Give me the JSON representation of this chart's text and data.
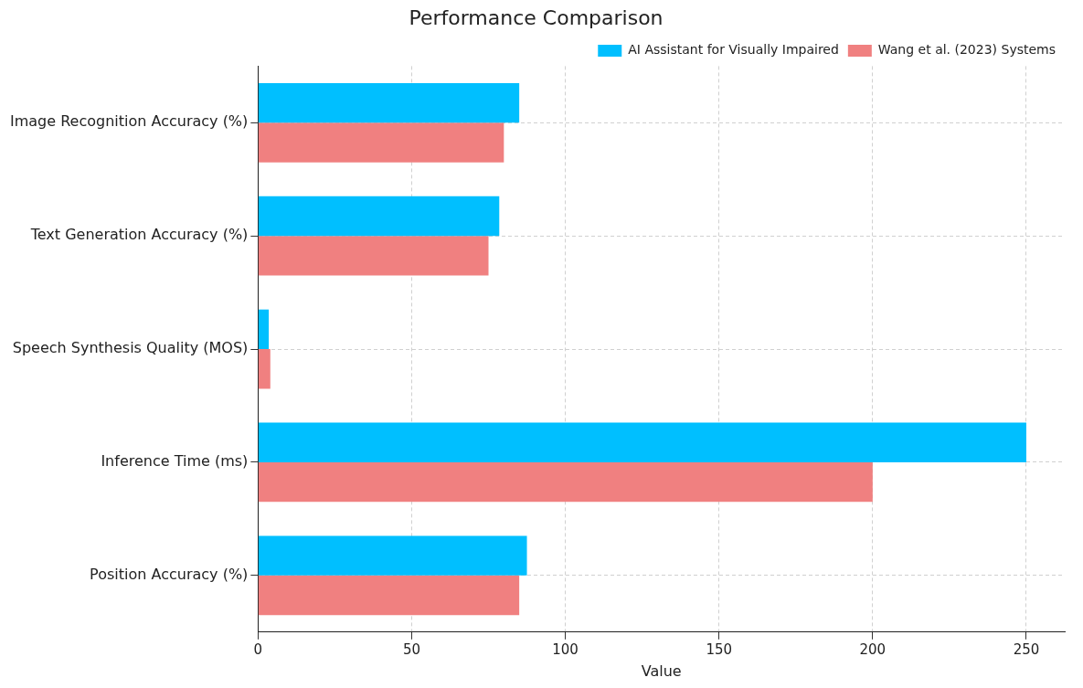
{
  "chart_data": {
    "type": "bar",
    "orientation": "horizontal",
    "title": "Performance Comparison",
    "xlabel": "Value",
    "categories": [
      "Image Recognition Accuracy (%)",
      "Text Generation Accuracy (%)",
      "Speech Synthesis Quality (MOS)",
      "Inference Time (ms)",
      "Position Accuracy (%)"
    ],
    "series": [
      {
        "name": "AI Assistant for Visually Impaired",
        "color": "#00bfff",
        "values": [
          85,
          78.5,
          3.5,
          250,
          87.5
        ]
      },
      {
        "name": "Wang et al. (2023) Systems",
        "color": "#f08080",
        "values": [
          80,
          75,
          4,
          200,
          85
        ]
      }
    ],
    "xlim": [
      0,
      262.5
    ],
    "xticks": [
      0,
      50,
      100,
      150,
      200,
      250
    ],
    "grid": true,
    "legend": "top right"
  }
}
